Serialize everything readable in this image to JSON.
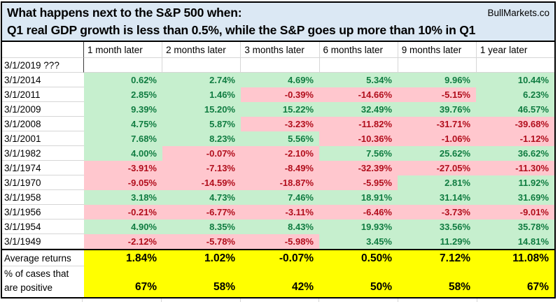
{
  "brand": "BullMarkets.co",
  "chart_data": {
    "type": "table",
    "title": "What happens next to the S&P 500 when:",
    "subtitle": "Q1 real GDP growth is less than 0.5%, while the S&P goes up more than 10% in Q1",
    "columns": [
      "1 month later",
      "2 months later",
      "3 months later",
      "6 months later",
      "9 months later",
      "1 year later"
    ],
    "pending_row": {
      "label": "3/1/2019 ???",
      "values": [
        "",
        "",
        "",
        "",
        "",
        ""
      ]
    },
    "rows": [
      {
        "label": "3/1/2014",
        "values": [
          "0.62%",
          "2.74%",
          "4.69%",
          "5.34%",
          "9.96%",
          "10.44%"
        ]
      },
      {
        "label": "3/1/2011",
        "values": [
          "2.85%",
          "1.46%",
          "-0.39%",
          "-14.66%",
          "-5.15%",
          "6.23%"
        ]
      },
      {
        "label": "3/1/2009",
        "values": [
          "9.39%",
          "15.20%",
          "15.22%",
          "32.49%",
          "39.76%",
          "46.57%"
        ]
      },
      {
        "label": "3/1/2008",
        "values": [
          "4.75%",
          "5.87%",
          "-3.23%",
          "-11.82%",
          "-31.71%",
          "-39.68%"
        ]
      },
      {
        "label": "3/1/2001",
        "values": [
          "7.68%",
          "8.23%",
          "5.56%",
          "-10.36%",
          "-1.06%",
          "-1.12%"
        ]
      },
      {
        "label": "3/1/1982",
        "values": [
          "4.00%",
          "-0.07%",
          "-2.10%",
          "7.56%",
          "25.62%",
          "36.62%"
        ]
      },
      {
        "label": "3/1/1974",
        "values": [
          "-3.91%",
          "-7.13%",
          "-8.49%",
          "-32.39%",
          "-27.05%",
          "-11.30%"
        ]
      },
      {
        "label": "3/1/1970",
        "values": [
          "-9.05%",
          "-14.59%",
          "-18.87%",
          "-5.95%",
          "2.81%",
          "11.92%"
        ]
      },
      {
        "label": "3/1/1958",
        "values": [
          "3.18%",
          "4.73%",
          "7.46%",
          "18.91%",
          "31.14%",
          "31.69%"
        ]
      },
      {
        "label": "3/1/1956",
        "values": [
          "-0.21%",
          "-6.77%",
          "-3.11%",
          "-6.46%",
          "-3.73%",
          "-9.01%"
        ]
      },
      {
        "label": "3/1/1954",
        "values": [
          "4.90%",
          "8.35%",
          "8.43%",
          "19.93%",
          "33.56%",
          "35.78%"
        ]
      },
      {
        "label": "3/1/1949",
        "values": [
          "-2.12%",
          "-5.78%",
          "-5.98%",
          "3.45%",
          "11.29%",
          "14.81%"
        ]
      }
    ],
    "summary_rows": [
      {
        "label": "Average returns",
        "values": [
          "1.84%",
          "1.02%",
          "-0.07%",
          "0.50%",
          "7.12%",
          "11.08%"
        ]
      },
      {
        "label": "% of cases that are positive",
        "values": [
          "67%",
          "58%",
          "42%",
          "50%",
          "58%",
          "67%"
        ]
      }
    ]
  },
  "colors": {
    "title_bg": "#DBE8F4",
    "positive_bg": "#C6EFCE",
    "positive_text": "#107C41",
    "negative_bg": "#FFC7CE",
    "negative_text": "#B10E1C",
    "summary_bg": "#FFFF00",
    "grid": "#D6D6D6",
    "separator": "#3B3B3B",
    "border": "#000000"
  }
}
